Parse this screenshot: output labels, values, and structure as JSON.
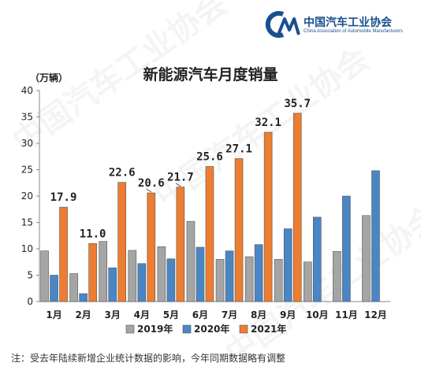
{
  "logo": {
    "name_cn": "中国汽车工业协会",
    "name_en": "China Association of Automobile Manufacturers"
  },
  "watermark": "中国汽车工业协会",
  "footnote": "注：受去年陆续新增企业统计数据的影响，今年同期数据略有调整",
  "colors": {
    "s2019": "#a5a5a5",
    "s2020": "#4a86c5",
    "s2021": "#ed7d31",
    "brand": "#1a4f8f"
  },
  "chart_data": {
    "type": "bar",
    "title": "新能源汽车月度销量",
    "unit": "（万辆）",
    "categories": [
      "1月",
      "2月",
      "3月",
      "4月",
      "5月",
      "6月",
      "7月",
      "8月",
      "9月",
      "10月",
      "11月",
      "12月"
    ],
    "ylim": [
      0,
      40
    ],
    "yticks": [
      0,
      5,
      10,
      15,
      20,
      25,
      30,
      35,
      40
    ],
    "grid": false,
    "legend_position": "bottom",
    "series": [
      {
        "name": "2019年",
        "values": [
          9.6,
          5.3,
          11.4,
          9.7,
          10.4,
          15.2,
          8.0,
          8.5,
          8.0,
          7.5,
          9.5,
          16.3
        ]
      },
      {
        "name": "2020年",
        "values": [
          5.0,
          1.5,
          6.4,
          7.2,
          8.1,
          10.3,
          9.6,
          10.8,
          13.8,
          16.0,
          20.0,
          24.8
        ]
      },
      {
        "name": "2021年",
        "values": [
          17.9,
          11.0,
          22.6,
          20.6,
          21.7,
          25.6,
          27.1,
          32.1,
          35.7,
          null,
          null,
          null
        ]
      }
    ],
    "data_labels": [
      "17.9",
      "11.0",
      "22.6",
      "20.6",
      "21.7",
      "25.6",
      "27.1",
      "32.1",
      "35.7"
    ]
  }
}
